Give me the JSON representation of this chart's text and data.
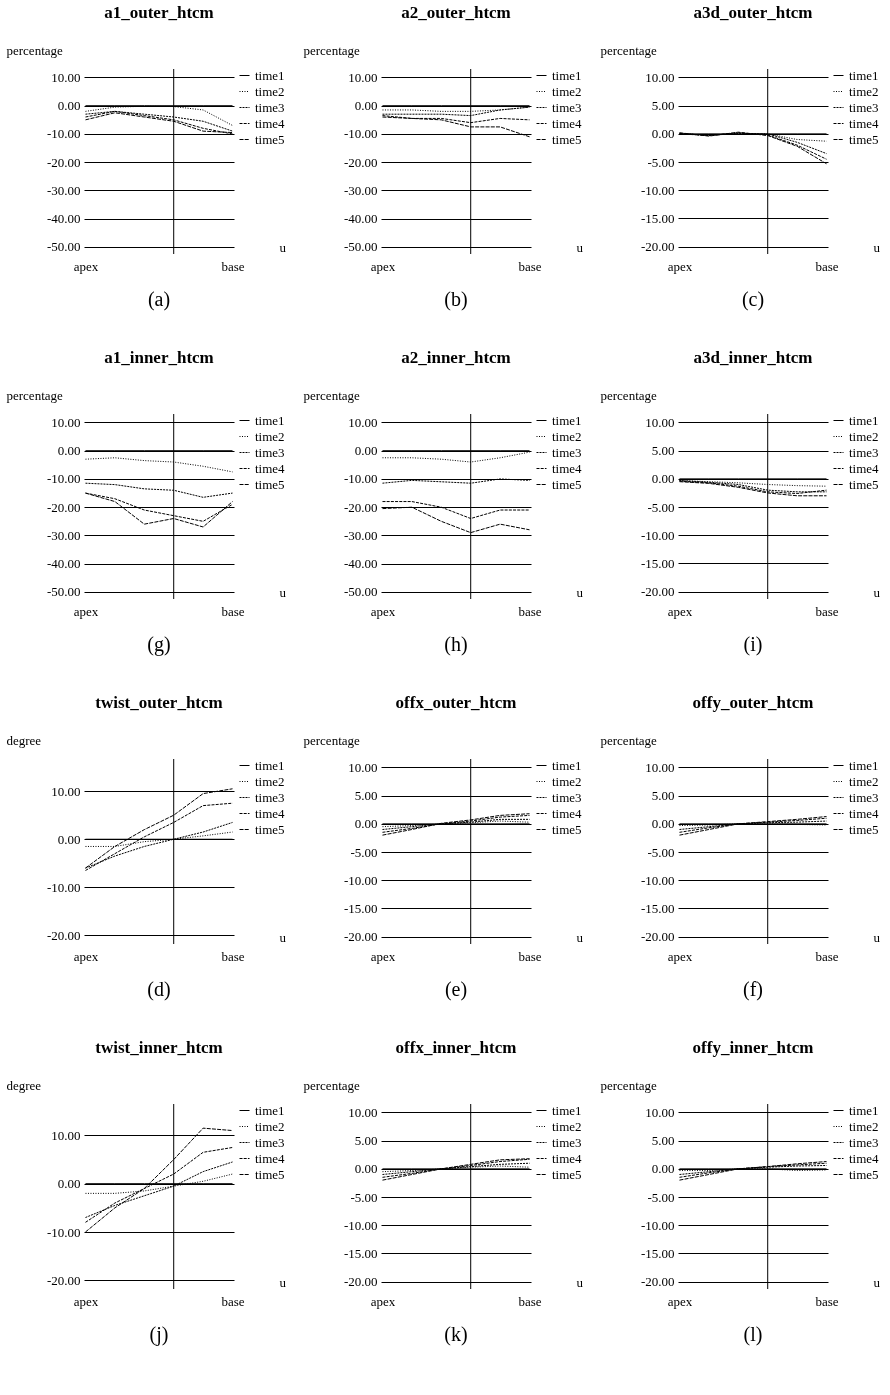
{
  "chart_data": [
    {
      "type": "line",
      "title": "a1_outer_htcm",
      "ylabel": "percentage",
      "xlabel": "u",
      "annotations": [
        "(a)"
      ],
      "categories": [
        "apex",
        null,
        null,
        null,
        null,
        "base"
      ],
      "ylim": [
        -52.5,
        13
      ],
      "yticks": [
        {
          "value": 10,
          "label": "10.00"
        },
        {
          "value": 0,
          "label": "0.00"
        },
        {
          "value": -10,
          "label": "-10.00"
        },
        {
          "value": -20,
          "label": "-20.00"
        },
        {
          "value": -30,
          "label": "-30.00"
        },
        {
          "value": -40,
          "label": "-40.00"
        },
        {
          "value": -50,
          "label": "-50.00"
        }
      ],
      "grid": "y",
      "legend": "right",
      "series": [
        {
          "name": "time1",
          "color": "#000000",
          "line_style": "solid",
          "values": [
            0,
            0,
            0,
            0,
            0,
            0
          ]
        },
        {
          "name": "time2",
          "color": "#000000",
          "line_style": "dotted",
          "values": [
            -2,
            -0.5,
            -0.2,
            -0.3,
            -1.5,
            -7
          ]
        },
        {
          "name": "time3",
          "color": "#000000",
          "line_style": "dashed",
          "values": [
            -3,
            -2,
            -3,
            -4,
            -5.5,
            -9
          ]
        },
        {
          "name": "time4",
          "color": "#000000",
          "line_style": "dashed",
          "values": [
            -4,
            -2,
            -3.5,
            -5,
            -8,
            -10
          ]
        },
        {
          "name": "time5",
          "color": "#000000",
          "line_style": "dashed",
          "values": [
            -5,
            -2.5,
            -4,
            -5.5,
            -9,
            -9.5
          ]
        }
      ]
    },
    {
      "type": "line",
      "title": "a2_outer_htcm",
      "ylabel": "percentage",
      "xlabel": "u",
      "annotations": [
        "(b)"
      ],
      "categories": [
        "apex",
        null,
        null,
        null,
        null,
        "base"
      ],
      "ylim": [
        -52.5,
        13
      ],
      "yticks": [
        {
          "value": 10,
          "label": "10.00"
        },
        {
          "value": 0,
          "label": "0.00"
        },
        {
          "value": -10,
          "label": "-10.00"
        },
        {
          "value": -20,
          "label": "-20.00"
        },
        {
          "value": -30,
          "label": "-30.00"
        },
        {
          "value": -40,
          "label": "-40.00"
        },
        {
          "value": -50,
          "label": "-50.00"
        }
      ],
      "grid": "y",
      "legend": "right",
      "series": [
        {
          "name": "time1",
          "color": "#000000",
          "line_style": "solid",
          "values": [
            0,
            0,
            0,
            0,
            0,
            0
          ]
        },
        {
          "name": "time2",
          "color": "#000000",
          "line_style": "dotted",
          "values": [
            -1.5,
            -1.5,
            -2,
            -2,
            -1.5,
            -0.5
          ]
        },
        {
          "name": "time3",
          "color": "#000000",
          "line_style": "dashed",
          "values": [
            -3,
            -3,
            -3,
            -3.5,
            -1.5,
            -0.5
          ]
        },
        {
          "name": "time4",
          "color": "#000000",
          "line_style": "dashed",
          "values": [
            -3.5,
            -4.5,
            -4.5,
            -6,
            -4.5,
            -5
          ]
        },
        {
          "name": "time5",
          "color": "#000000",
          "line_style": "dashed",
          "values": [
            -4,
            -4.5,
            -5,
            -7.5,
            -7.5,
            -11
          ]
        }
      ]
    },
    {
      "type": "line",
      "title": "a3d_outer_htcm",
      "ylabel": "percentage",
      "xlabel": "u",
      "annotations": [
        "(c)"
      ],
      "categories": [
        "apex",
        null,
        null,
        null,
        null,
        "base"
      ],
      "ylim": [
        -21.3,
        11.5
      ],
      "yticks": [
        {
          "value": 10,
          "label": "10.00"
        },
        {
          "value": 5,
          "label": "5.00"
        },
        {
          "value": 0,
          "label": "0.00"
        },
        {
          "value": -5,
          "label": "-5.00"
        },
        {
          "value": -10,
          "label": "-10.00"
        },
        {
          "value": -15,
          "label": "-15.00"
        },
        {
          "value": -20,
          "label": "-20.00"
        }
      ],
      "grid": "y",
      "legend": "right",
      "series": [
        {
          "name": "time1",
          "color": "#000000",
          "line_style": "solid",
          "values": [
            0,
            0,
            0,
            0,
            0,
            0
          ]
        },
        {
          "name": "time2",
          "color": "#000000",
          "line_style": "dotted",
          "values": [
            0,
            -0.2,
            0,
            0,
            -1,
            -1.3
          ]
        },
        {
          "name": "time3",
          "color": "#000000",
          "line_style": "dashed",
          "values": [
            0,
            -0.3,
            0.1,
            0,
            -1.5,
            -3.5
          ]
        },
        {
          "name": "time4",
          "color": "#000000",
          "line_style": "dashed",
          "values": [
            0.1,
            -0.3,
            0.2,
            -0.2,
            -2,
            -4.5
          ]
        },
        {
          "name": "time5",
          "color": "#000000",
          "line_style": "dashed",
          "values": [
            0.2,
            -0.4,
            0.3,
            -0.3,
            -2.2,
            -5.3
          ]
        }
      ]
    },
    {
      "type": "line",
      "title": "a1_inner_htcm",
      "ylabel": "percentage",
      "xlabel": "u",
      "annotations": [
        "(g)"
      ],
      "categories": [
        "apex",
        null,
        null,
        null,
        null,
        "base"
      ],
      "ylim": [
        -52.5,
        13
      ],
      "yticks": [
        {
          "value": 10,
          "label": "10.00"
        },
        {
          "value": 0,
          "label": "0.00"
        },
        {
          "value": -10,
          "label": "-10.00"
        },
        {
          "value": -20,
          "label": "-20.00"
        },
        {
          "value": -30,
          "label": "-30.00"
        },
        {
          "value": -40,
          "label": "-40.00"
        },
        {
          "value": -50,
          "label": "-50.00"
        }
      ],
      "grid": "y",
      "legend": "right",
      "series": [
        {
          "name": "time1",
          "color": "#000000",
          "line_style": "solid",
          "values": [
            0,
            0,
            0,
            0,
            0,
            0
          ]
        },
        {
          "name": "time2",
          "color": "#000000",
          "line_style": "dotted",
          "values": [
            -3,
            -2.5,
            -3.5,
            -4,
            -5.5,
            -7.5
          ]
        },
        {
          "name": "time3",
          "color": "#000000",
          "line_style": "dashed",
          "values": [
            -11.5,
            -12,
            -13.5,
            -14,
            -16.5,
            -15
          ]
        },
        {
          "name": "time4",
          "color": "#000000",
          "line_style": "dashed",
          "values": [
            -15,
            -17,
            -21,
            -23,
            -25,
            -19
          ]
        },
        {
          "name": "time5",
          "color": "#000000",
          "line_style": "dashed",
          "values": [
            -15,
            -18,
            -26,
            -24,
            -27,
            -18
          ]
        }
      ]
    },
    {
      "type": "line",
      "title": "a2_inner_htcm",
      "ylabel": "percentage",
      "xlabel": "u",
      "annotations": [
        "(h)"
      ],
      "categories": [
        "apex",
        null,
        null,
        null,
        null,
        "base"
      ],
      "ylim": [
        -52.5,
        13
      ],
      "yticks": [
        {
          "value": 10,
          "label": "10.00"
        },
        {
          "value": 0,
          "label": "0.00"
        },
        {
          "value": -10,
          "label": "-10.00"
        },
        {
          "value": -20,
          "label": "-20.00"
        },
        {
          "value": -30,
          "label": "-30.00"
        },
        {
          "value": -40,
          "label": "-40.00"
        },
        {
          "value": -50,
          "label": "-50.00"
        }
      ],
      "grid": "y",
      "legend": "right",
      "series": [
        {
          "name": "time1",
          "color": "#000000",
          "line_style": "solid",
          "values": [
            0,
            0,
            0,
            0,
            0,
            0
          ]
        },
        {
          "name": "time2",
          "color": "#000000",
          "line_style": "dotted",
          "values": [
            -2.5,
            -2.5,
            -3,
            -4,
            -2.5,
            -0.5
          ]
        },
        {
          "name": "time3",
          "color": "#000000",
          "line_style": "dashed",
          "values": [
            -11.5,
            -10.5,
            -11,
            -11.5,
            -10,
            -10.5
          ]
        },
        {
          "name": "time4",
          "color": "#000000",
          "line_style": "dashed",
          "values": [
            -18,
            -18,
            -20,
            -24,
            -21,
            -21
          ]
        },
        {
          "name": "time5",
          "color": "#000000",
          "line_style": "dashed",
          "values": [
            -20.5,
            -20,
            -25,
            -29,
            -26,
            -28
          ]
        }
      ]
    },
    {
      "type": "line",
      "title": "a3d_inner_htcm",
      "ylabel": "percentage",
      "xlabel": "u",
      "annotations": [
        "(i)"
      ],
      "categories": [
        "apex",
        null,
        null,
        null,
        null,
        "base"
      ],
      "ylim": [
        -21.3,
        11.5
      ],
      "yticks": [
        {
          "value": 10,
          "label": "10.00"
        },
        {
          "value": 5,
          "label": "5.00"
        },
        {
          "value": 0,
          "label": "0.00"
        },
        {
          "value": -5,
          "label": "-5.00"
        },
        {
          "value": -10,
          "label": "-10.00"
        },
        {
          "value": -15,
          "label": "-15.00"
        },
        {
          "value": -20,
          "label": "-20.00"
        }
      ],
      "grid": "y",
      "legend": "right",
      "series": [
        {
          "name": "time1",
          "color": "#000000",
          "line_style": "solid",
          "values": [
            0,
            0,
            0,
            0,
            0,
            0
          ]
        },
        {
          "name": "time2",
          "color": "#000000",
          "line_style": "dotted",
          "values": [
            -0.3,
            -0.5,
            -0.7,
            -1,
            -1.2,
            -1.3
          ]
        },
        {
          "name": "time3",
          "color": "#000000",
          "line_style": "dashed",
          "values": [
            -0.3,
            -0.6,
            -1,
            -2,
            -2.3,
            -2.3
          ]
        },
        {
          "name": "time4",
          "color": "#000000",
          "line_style": "dashed",
          "values": [
            -0.4,
            -0.7,
            -1.3,
            -2.3,
            -2.6,
            -2
          ]
        },
        {
          "name": "time5",
          "color": "#000000",
          "line_style": "dashed",
          "values": [
            -0.5,
            -0.8,
            -1.5,
            -2.5,
            -3,
            -3
          ]
        }
      ]
    },
    {
      "type": "line",
      "title": "twist_outer_htcm",
      "ylabel": "degree",
      "xlabel": "u",
      "annotations": [
        "(d)"
      ],
      "categories": [
        "apex",
        null,
        null,
        null,
        null,
        "base"
      ],
      "ylim": [
        -21.8,
        16.7
      ],
      "yticks": [
        {
          "value": 10,
          "label": "10.00"
        },
        {
          "value": 0,
          "label": "0.00"
        },
        {
          "value": -10,
          "label": "-10.00"
        },
        {
          "value": -20,
          "label": "-20.00"
        }
      ],
      "grid": "y",
      "legend": "right",
      "series": [
        {
          "name": "time1",
          "color": "#000000",
          "line_style": "solid",
          "values": [
            0,
            0,
            0,
            0,
            0,
            0
          ]
        },
        {
          "name": "time2",
          "color": "#000000",
          "line_style": "dotted",
          "values": [
            -1.5,
            -1.5,
            -0.5,
            0,
            0.7,
            1.5
          ]
        },
        {
          "name": "time3",
          "color": "#000000",
          "line_style": "dashed",
          "values": [
            -6,
            -3.5,
            -1.5,
            0,
            1.5,
            3.5
          ]
        },
        {
          "name": "time4",
          "color": "#000000",
          "line_style": "dashed",
          "values": [
            -6.5,
            -3,
            0.5,
            3.5,
            7,
            7.5
          ]
        },
        {
          "name": "time5",
          "color": "#000000",
          "line_style": "dashed",
          "values": [
            -6,
            -1.5,
            2,
            5,
            9.5,
            10.5
          ]
        }
      ]
    },
    {
      "type": "line",
      "title": "offx_outer_htcm",
      "ylabel": "percentage",
      "xlabel": "u",
      "annotations": [
        "(e)"
      ],
      "categories": [
        "apex",
        null,
        null,
        null,
        null,
        "base"
      ],
      "ylim": [
        -21.3,
        11.5
      ],
      "yticks": [
        {
          "value": 10,
          "label": "10.00"
        },
        {
          "value": 5,
          "label": "5.00"
        },
        {
          "value": 0,
          "label": "0.00"
        },
        {
          "value": -5,
          "label": "-5.00"
        },
        {
          "value": -10,
          "label": "-10.00"
        },
        {
          "value": -15,
          "label": "-15.00"
        },
        {
          "value": -20,
          "label": "-20.00"
        }
      ],
      "grid": "y",
      "legend": "right",
      "series": [
        {
          "name": "time1",
          "color": "#000000",
          "line_style": "solid",
          "values": [
            0,
            0,
            0,
            0,
            0,
            0
          ]
        },
        {
          "name": "time2",
          "color": "#000000",
          "line_style": "dotted",
          "values": [
            -0.5,
            -0.3,
            0,
            0.2,
            0.5,
            0.3
          ]
        },
        {
          "name": "time3",
          "color": "#000000",
          "line_style": "dashed",
          "values": [
            -1,
            -0.5,
            0,
            0.3,
            0.8,
            0.8
          ]
        },
        {
          "name": "time4",
          "color": "#000000",
          "line_style": "dashed",
          "values": [
            -1.5,
            -0.8,
            0,
            0.5,
            1.2,
            1.5
          ]
        },
        {
          "name": "time5",
          "color": "#000000",
          "line_style": "dashed",
          "values": [
            -2,
            -1,
            0.1,
            0.7,
            1.5,
            1.8
          ]
        }
      ]
    },
    {
      "type": "line",
      "title": "offy_outer_htcm",
      "ylabel": "percentage",
      "xlabel": "u",
      "annotations": [
        "(f)"
      ],
      "categories": [
        "apex",
        null,
        null,
        null,
        null,
        "base"
      ],
      "ylim": [
        -21.3,
        11.5
      ],
      "yticks": [
        {
          "value": 10,
          "label": "10.00"
        },
        {
          "value": 5,
          "label": "5.00"
        },
        {
          "value": 0,
          "label": "0.00"
        },
        {
          "value": -5,
          "label": "-5.00"
        },
        {
          "value": -10,
          "label": "-10.00"
        },
        {
          "value": -15,
          "label": "-15.00"
        },
        {
          "value": -20,
          "label": "-20.00"
        }
      ],
      "grid": "y",
      "legend": "right",
      "series": [
        {
          "name": "time1",
          "color": "#000000",
          "line_style": "solid",
          "values": [
            0,
            0,
            0,
            0,
            0,
            0
          ]
        },
        {
          "name": "time2",
          "color": "#000000",
          "line_style": "dotted",
          "values": [
            -0.3,
            -0.2,
            0,
            0,
            -0.1,
            -0.2
          ]
        },
        {
          "name": "time3",
          "color": "#000000",
          "line_style": "dashed",
          "values": [
            -1,
            -0.5,
            0,
            0.2,
            0.3,
            0.5
          ]
        },
        {
          "name": "time4",
          "color": "#000000",
          "line_style": "dashed",
          "values": [
            -1.5,
            -0.7,
            0,
            0.3,
            0.6,
            1
          ]
        },
        {
          "name": "time5",
          "color": "#000000",
          "line_style": "dashed",
          "values": [
            -2,
            -1,
            0,
            0.4,
            0.8,
            1.3
          ]
        }
      ]
    },
    {
      "type": "line",
      "title": "twist_inner_htcm",
      "ylabel": "degree",
      "xlabel": "u",
      "annotations": [
        "(j)"
      ],
      "categories": [
        "apex",
        null,
        null,
        null,
        null,
        "base"
      ],
      "ylim": [
        -21.8,
        16.5
      ],
      "yticks": [
        {
          "value": 10,
          "label": "10.00"
        },
        {
          "value": 0,
          "label": "0.00"
        },
        {
          "value": -10,
          "label": "-10.00"
        },
        {
          "value": -20,
          "label": "-20.00"
        }
      ],
      "grid": "y",
      "legend": "right",
      "series": [
        {
          "name": "time1",
          "color": "#000000",
          "line_style": "solid",
          "values": [
            0,
            0,
            0,
            0,
            0,
            0
          ]
        },
        {
          "name": "time2",
          "color": "#000000",
          "line_style": "dotted",
          "values": [
            -2,
            -2,
            -1.5,
            -0.5,
            0.5,
            2
          ]
        },
        {
          "name": "time3",
          "color": "#000000",
          "line_style": "dashed",
          "values": [
            -7,
            -4.5,
            -2.5,
            -0.5,
            2.5,
            4.5
          ]
        },
        {
          "name": "time4",
          "color": "#000000",
          "line_style": "dashed",
          "values": [
            -8,
            -4,
            -1,
            2,
            6.5,
            7.5
          ]
        },
        {
          "name": "time5",
          "color": "#000000",
          "line_style": "dashed",
          "values": [
            -10,
            -5,
            -1,
            5,
            11.5,
            11
          ]
        }
      ]
    },
    {
      "type": "line",
      "title": "offx_inner_htcm",
      "ylabel": "percentage",
      "xlabel": "u",
      "annotations": [
        "(k)"
      ],
      "categories": [
        "apex",
        null,
        null,
        null,
        null,
        "base"
      ],
      "ylim": [
        -21.3,
        11.5
      ],
      "yticks": [
        {
          "value": 10,
          "label": "10.00"
        },
        {
          "value": 5,
          "label": "5.00"
        },
        {
          "value": 0,
          "label": "0.00"
        },
        {
          "value": -5,
          "label": "-5.00"
        },
        {
          "value": -10,
          "label": "-10.00"
        },
        {
          "value": -15,
          "label": "-15.00"
        },
        {
          "value": -20,
          "label": "-20.00"
        }
      ],
      "grid": "y",
      "legend": "right",
      "series": [
        {
          "name": "time1",
          "color": "#000000",
          "line_style": "solid",
          "values": [
            0,
            0,
            0,
            0,
            0,
            0
          ]
        },
        {
          "name": "time2",
          "color": "#000000",
          "line_style": "dotted",
          "values": [
            -0.5,
            -0.3,
            0,
            0.3,
            0.5,
            0.3
          ]
        },
        {
          "name": "time3",
          "color": "#000000",
          "line_style": "dashed",
          "values": [
            -1,
            -0.5,
            0,
            0.4,
            0.8,
            1
          ]
        },
        {
          "name": "time4",
          "color": "#000000",
          "line_style": "dashed",
          "values": [
            -1.5,
            -0.8,
            0,
            0.6,
            1.3,
            1.7
          ]
        },
        {
          "name": "time5",
          "color": "#000000",
          "line_style": "dashed",
          "values": [
            -2,
            -1,
            0,
            0.8,
            1.6,
            1.8
          ]
        }
      ]
    },
    {
      "type": "line",
      "title": "offy_inner_htcm",
      "ylabel": "percentage",
      "xlabel": "u",
      "annotations": [
        "(l)"
      ],
      "categories": [
        "apex",
        null,
        null,
        null,
        null,
        "base"
      ],
      "ylim": [
        -21.3,
        11.5
      ],
      "yticks": [
        {
          "value": 10,
          "label": "10.00"
        },
        {
          "value": 5,
          "label": "5.00"
        },
        {
          "value": 0,
          "label": "0.00"
        },
        {
          "value": -5,
          "label": "-5.00"
        },
        {
          "value": -10,
          "label": "-10.00"
        },
        {
          "value": -15,
          "label": "-15.00"
        },
        {
          "value": -20,
          "label": "-20.00"
        }
      ],
      "grid": "y",
      "legend": "right",
      "series": [
        {
          "name": "time1",
          "color": "#000000",
          "line_style": "solid",
          "values": [
            0,
            0,
            0,
            0,
            0,
            0
          ]
        },
        {
          "name": "time2",
          "color": "#000000",
          "line_style": "dotted",
          "values": [
            -0.3,
            -0.3,
            0,
            0,
            -0.3,
            -0.2
          ]
        },
        {
          "name": "time3",
          "color": "#000000",
          "line_style": "dashed",
          "values": [
            -1,
            -0.5,
            0,
            0.3,
            0.5,
            0.6
          ]
        },
        {
          "name": "time4",
          "color": "#000000",
          "line_style": "dashed",
          "values": [
            -1.5,
            -0.7,
            0,
            0.4,
            0.7,
            1
          ]
        },
        {
          "name": "time5",
          "color": "#000000",
          "line_style": "dashed",
          "values": [
            -2,
            -1,
            0,
            0.4,
            0.9,
            1.3
          ]
        }
      ]
    }
  ]
}
